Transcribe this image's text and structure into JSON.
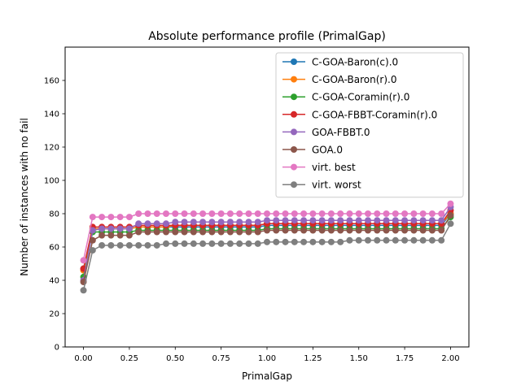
{
  "chart_data": {
    "type": "line",
    "title": "Absolute performance profile (PrimalGap)",
    "xlabel": "PrimalGap",
    "ylabel": "Number of instances with no fail",
    "xlim": [
      -0.1,
      2.1
    ],
    "ylim": [
      0,
      180
    ],
    "x_ticks": [
      0.0,
      0.25,
      0.5,
      0.75,
      1.0,
      1.25,
      1.5,
      1.75,
      2.0
    ],
    "x_tick_labels": [
      "0.00",
      "0.25",
      "0.50",
      "0.75",
      "1.00",
      "1.25",
      "1.50",
      "1.75",
      "2.00"
    ],
    "y_ticks": [
      0,
      20,
      40,
      60,
      80,
      100,
      120,
      140,
      160
    ],
    "y_tick_labels": [
      "0",
      "20",
      "40",
      "60",
      "80",
      "100",
      "120",
      "140",
      "160"
    ],
    "grid": false,
    "legend_position": "top-right",
    "x": [
      0.0,
      0.05,
      0.1,
      0.15,
      0.2,
      0.25,
      0.3,
      0.35,
      0.4,
      0.45,
      0.5,
      0.55,
      0.6,
      0.65,
      0.7,
      0.75,
      0.8,
      0.85,
      0.9,
      0.95,
      1.0,
      1.05,
      1.1,
      1.15,
      1.2,
      1.25,
      1.3,
      1.35,
      1.4,
      1.45,
      1.5,
      1.55,
      1.6,
      1.65,
      1.7,
      1.75,
      1.8,
      1.85,
      1.9,
      1.95,
      2.0
    ],
    "series": [
      {
        "name": "C-GOA-Baron(c).0",
        "color": "#1f77b4",
        "values": [
          47,
          71,
          71,
          71,
          71,
          71,
          72,
          72,
          72,
          72,
          72,
          72,
          72,
          72,
          72,
          72,
          72,
          72,
          72,
          72,
          73,
          73,
          73,
          73,
          73,
          73,
          73,
          73,
          73,
          73,
          73,
          73,
          73,
          73,
          73,
          73,
          73,
          73,
          73,
          73,
          80
        ]
      },
      {
        "name": "C-GOA-Baron(r).0",
        "color": "#ff7f0e",
        "values": [
          46,
          71,
          71,
          71,
          71,
          71,
          72,
          72,
          72,
          72,
          73,
          73,
          73,
          73,
          73,
          73,
          73,
          73,
          73,
          73,
          74,
          74,
          74,
          74,
          74,
          74,
          74,
          74,
          74,
          74,
          74,
          74,
          74,
          74,
          74,
          74,
          74,
          74,
          74,
          74,
          80
        ]
      },
      {
        "name": "C-GOA-Coramin(r).0",
        "color": "#2ca02c",
        "values": [
          42,
          69,
          69,
          69,
          69,
          69,
          70,
          70,
          70,
          70,
          70,
          70,
          70,
          70,
          70,
          70,
          70,
          70,
          70,
          70,
          71,
          71,
          71,
          71,
          71,
          71,
          71,
          71,
          71,
          71,
          71,
          71,
          71,
          71,
          71,
          71,
          71,
          71,
          71,
          71,
          78
        ]
      },
      {
        "name": "C-GOA-FBBT-Coramin(r).0",
        "color": "#d62728",
        "values": [
          47,
          72,
          72,
          72,
          72,
          72,
          73,
          73,
          73,
          73,
          73,
          73,
          73,
          73,
          73,
          73,
          73,
          73,
          73,
          73,
          74,
          74,
          74,
          74,
          74,
          74,
          74,
          74,
          74,
          74,
          74,
          74,
          74,
          74,
          74,
          74,
          74,
          74,
          74,
          74,
          82
        ]
      },
      {
        "name": "GOA-FBBT.0",
        "color": "#9467bd",
        "values": [
          40,
          70,
          71,
          71,
          71,
          71,
          74,
          74,
          74,
          74,
          75,
          75,
          75,
          75,
          75,
          75,
          75,
          75,
          75,
          75,
          76,
          76,
          76,
          76,
          76,
          76,
          76,
          76,
          76,
          76,
          76,
          76,
          76,
          76,
          76,
          76,
          76,
          76,
          76,
          76,
          84
        ]
      },
      {
        "name": "GOA.0",
        "color": "#8c564b",
        "values": [
          39,
          64,
          67,
          67,
          67,
          67,
          69,
          69,
          69,
          69,
          69,
          69,
          69,
          69,
          69,
          69,
          69,
          69,
          69,
          69,
          70,
          70,
          70,
          70,
          70,
          70,
          70,
          70,
          70,
          70,
          70,
          70,
          70,
          70,
          70,
          70,
          70,
          70,
          70,
          70,
          79
        ]
      },
      {
        "name": "virt. best",
        "color": "#e377c2",
        "values": [
          52,
          78,
          78,
          78,
          78,
          78,
          80,
          80,
          80,
          80,
          80,
          80,
          80,
          80,
          80,
          80,
          80,
          80,
          80,
          80,
          80,
          80,
          80,
          80,
          80,
          80,
          80,
          80,
          80,
          80,
          80,
          80,
          80,
          80,
          80,
          80,
          80,
          80,
          80,
          80,
          86
        ]
      },
      {
        "name": "virt. worst",
        "color": "#7f7f7f",
        "values": [
          34,
          58,
          61,
          61,
          61,
          61,
          61,
          61,
          61,
          62,
          62,
          62,
          62,
          62,
          62,
          62,
          62,
          62,
          62,
          62,
          63,
          63,
          63,
          63,
          63,
          63,
          63,
          63,
          63,
          64,
          64,
          64,
          64,
          64,
          64,
          64,
          64,
          64,
          64,
          64,
          74
        ]
      }
    ]
  }
}
